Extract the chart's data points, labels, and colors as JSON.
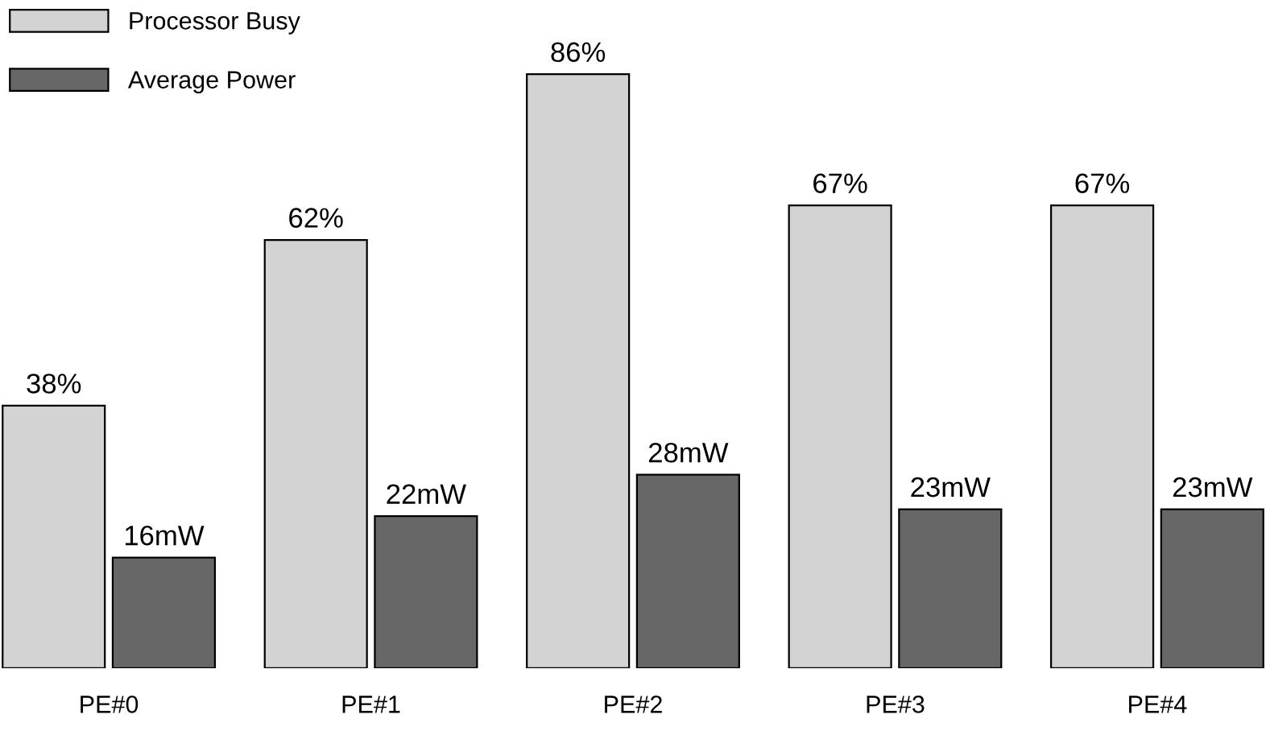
{
  "chart_data": {
    "type": "bar",
    "categories": [
      "PE#0",
      "PE#1",
      "PE#2",
      "PE#3",
      "PE#4"
    ],
    "series": [
      {
        "name": "Processor Busy",
        "color": "#d3d3d3",
        "values": [
          38,
          62,
          86,
          67,
          67
        ],
        "value_labels": [
          "38%",
          "62%",
          "86%",
          "67%",
          "67%"
        ]
      },
      {
        "name": "Average Power",
        "color": "#676767",
        "values": [
          16,
          22,
          28,
          23,
          23
        ],
        "value_labels": [
          "16mW",
          "22mW",
          "28mW",
          "23mW",
          "23mW"
        ]
      }
    ],
    "legend": "top left",
    "grid": false
  }
}
